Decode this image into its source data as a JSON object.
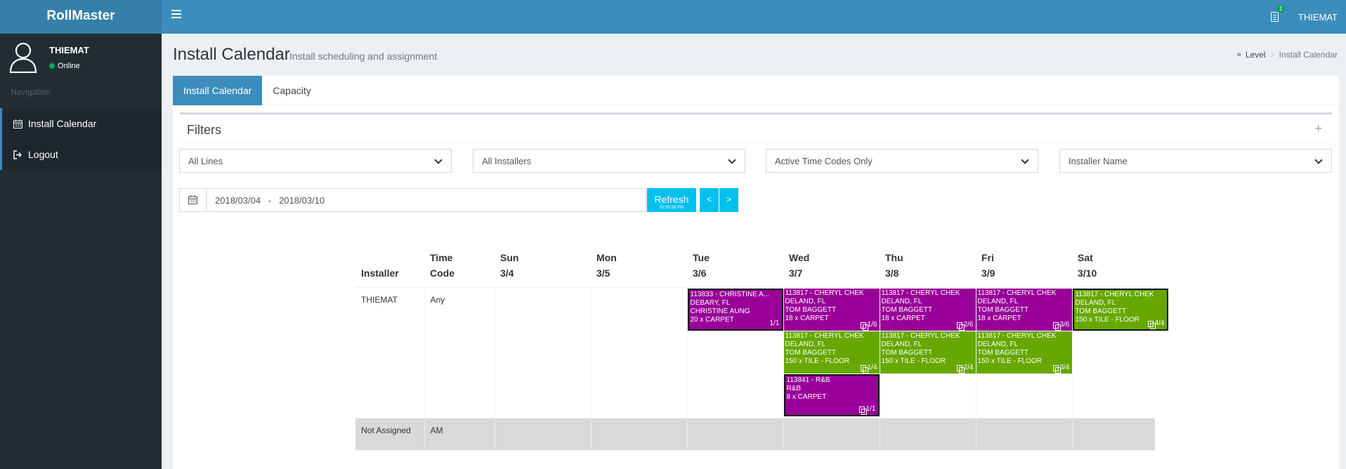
{
  "app": {
    "name": "RollMaster"
  },
  "header": {
    "user": "THIEMAT",
    "notification_count": "1"
  },
  "sidebar": {
    "user_name": "THIEMAT",
    "status": "Online",
    "nav_header": "Navigation",
    "items": [
      {
        "label": "Install Calendar"
      },
      {
        "label": "Logout"
      }
    ]
  },
  "page": {
    "title": "Install Calendar",
    "subtitle": "Install scheduling and assignment",
    "breadcrumb": [
      "Level",
      "Install Calendar"
    ]
  },
  "tabs": [
    {
      "label": "Install Calendar",
      "active": true
    },
    {
      "label": "Capacity",
      "active": false
    }
  ],
  "filters": {
    "title": "Filters",
    "selects": [
      {
        "value": "All Lines"
      },
      {
        "value": "All Installers"
      },
      {
        "value": "Active Time Codes Only"
      },
      {
        "value": "Installer Name"
      }
    ],
    "date_range": "2018/03/04   -   2018/03/10",
    "refresh_label": "Refresh",
    "refresh_time": "02:50:58 PM",
    "prev_label": "<",
    "next_label": ">"
  },
  "calendar": {
    "columns": [
      {
        "top": "Installer",
        "bottom": ""
      },
      {
        "top": "Time",
        "bottom": "Code"
      },
      {
        "top": "Sun",
        "bottom": "3/4"
      },
      {
        "top": "Mon",
        "bottom": "3/5"
      },
      {
        "top": "Tue",
        "bottom": "3/6"
      },
      {
        "top": "Wed",
        "bottom": "3/7"
      },
      {
        "top": "Thu",
        "bottom": "3/8"
      },
      {
        "top": "Fri",
        "bottom": "3/9"
      },
      {
        "top": "Sat",
        "bottom": "3/10"
      }
    ],
    "rows": [
      {
        "installer": "THIEMAT",
        "time_code": "Any",
        "days": [
          [],
          [],
          [
            {
              "lines": [
                "113833 - CHRISTINE A...",
                "DEBARY, FL",
                "CHRISTINE AUNG",
                "20 x CARPET"
              ],
              "page": "1/1",
              "color": "#990099",
              "outlined": true,
              "copy_icon": false
            }
          ],
          [
            {
              "lines": [
                "113817 - CHERYL CHEK",
                "DELAND, FL",
                "TOM BAGGETT",
                "18 x CARPET"
              ],
              "page": "1/6",
              "color": "#990099",
              "outlined": false,
              "copy_icon": true
            },
            {
              "lines": [
                "113817 - CHERYL CHEK",
                "DELAND, FL",
                "TOM BAGGETT",
                "150 x TILE - FLOOR"
              ],
              "page": "1/4",
              "color": "#66a800",
              "outlined": false,
              "copy_icon": true
            },
            {
              "lines": [
                "113841 - R&B",
                "R&B",
                "8 x CARPET"
              ],
              "page": "1/1",
              "color": "#990099",
              "outlined": true,
              "copy_icon": true
            }
          ],
          [
            {
              "lines": [
                "113817 - CHERYL CHEK",
                "DELAND, FL",
                "TOM BAGGETT",
                "18 x CARPET"
              ],
              "page": "2/6",
              "color": "#990099",
              "outlined": false,
              "copy_icon": true
            },
            {
              "lines": [
                "113817 - CHERYL CHEK",
                "DELAND, FL",
                "TOM BAGGETT",
                "150 x TILE - FLOOR"
              ],
              "page": "2/4",
              "color": "#66a800",
              "outlined": false,
              "copy_icon": true
            }
          ],
          [
            {
              "lines": [
                "113817 - CHERYL CHEK",
                "DELAND, FL",
                "TOM BAGGETT",
                "18 x CARPET"
              ],
              "page": "3/6",
              "color": "#990099",
              "outlined": false,
              "copy_icon": true
            },
            {
              "lines": [
                "113817 - CHERYL CHEK",
                "DELAND, FL",
                "TOM BAGGETT",
                "150 x TILE - FLOOR"
              ],
              "page": "3/4",
              "color": "#66a800",
              "outlined": false,
              "copy_icon": true
            }
          ],
          [
            {
              "lines": [
                "113817 - CHERYL CHEK",
                "DELAND, FL",
                "TOM BAGGETT",
                "150 x TILE - FLOOR"
              ],
              "page": "4/4",
              "color": "#66a800",
              "outlined": true,
              "copy_icon": true
            }
          ]
        ]
      },
      {
        "installer": "Not Assigned",
        "time_code": "AM",
        "days": [
          [],
          [],
          [],
          [],
          [],
          [],
          []
        ]
      }
    ]
  }
}
